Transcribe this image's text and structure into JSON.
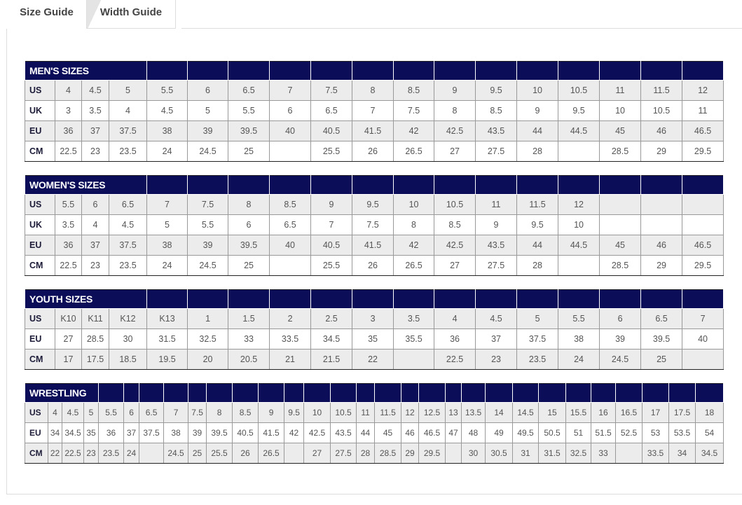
{
  "tabs": [
    {
      "label": "Size Guide",
      "active": true
    },
    {
      "label": "Width Guide",
      "active": false
    }
  ],
  "colors": {
    "header": "#0b0d59",
    "row_alt": "#ececec"
  },
  "tables": {
    "men": {
      "title": "MEN'S SIZES",
      "rows": [
        {
          "label": "US",
          "values": [
            "4",
            "4.5",
            "5",
            "5.5",
            "6",
            "6.5",
            "7",
            "7.5",
            "8",
            "8.5",
            "9",
            "9.5",
            "10",
            "10.5",
            "11",
            "11.5",
            "12"
          ]
        },
        {
          "label": "UK",
          "values": [
            "3",
            "3.5",
            "4",
            "4.5",
            "5",
            "5.5",
            "6",
            "6.5",
            "7",
            "7.5",
            "8",
            "8.5",
            "9",
            "9.5",
            "10",
            "10.5",
            "11"
          ]
        },
        {
          "label": "EU",
          "values": [
            "36",
            "37",
            "37.5",
            "38",
            "39",
            "39.5",
            "40",
            "40.5",
            "41.5",
            "42",
            "42.5",
            "43.5",
            "44",
            "44.5",
            "45",
            "46",
            "46.5"
          ]
        },
        {
          "label": "CM",
          "values": [
            "22.5",
            "23",
            "23.5",
            "24",
            "24.5",
            "25",
            "",
            "25.5",
            "26",
            "26.5",
            "27",
            "27.5",
            "28",
            "",
            "28.5",
            "29",
            "29.5"
          ]
        }
      ]
    },
    "women": {
      "title": "WOMEN'S SIZES",
      "rows": [
        {
          "label": "US",
          "values": [
            "5.5",
            "6",
            "6.5",
            "7",
            "7.5",
            "8",
            "8.5",
            "9",
            "9.5",
            "10",
            "10.5",
            "11",
            "11.5",
            "12",
            "",
            "",
            ""
          ]
        },
        {
          "label": "UK",
          "values": [
            "3.5",
            "4",
            "4.5",
            "5",
            "5.5",
            "6",
            "6.5",
            "7",
            "7.5",
            "8",
            "8.5",
            "9",
            "9.5",
            "10",
            "",
            "",
            ""
          ]
        },
        {
          "label": "EU",
          "values": [
            "36",
            "37",
            "37.5",
            "38",
            "39",
            "39.5",
            "40",
            "40.5",
            "41.5",
            "42",
            "42.5",
            "43.5",
            "44",
            "44.5",
            "45",
            "46",
            "46.5"
          ]
        },
        {
          "label": "CM",
          "values": [
            "22.5",
            "23",
            "23.5",
            "24",
            "24.5",
            "25",
            "",
            "25.5",
            "26",
            "26.5",
            "27",
            "27.5",
            "28",
            "",
            "28.5",
            "29",
            "29.5"
          ]
        }
      ]
    },
    "youth": {
      "title": "YOUTH SIZES",
      "rows": [
        {
          "label": "US",
          "values": [
            "K10",
            "K11",
            "K12",
            "K13",
            "1",
            "1.5",
            "2",
            "2.5",
            "3",
            "3.5",
            "4",
            "4.5",
            "5",
            "5.5",
            "6",
            "6.5",
            "7"
          ]
        },
        {
          "label": "EU",
          "values": [
            "27",
            "28.5",
            "30",
            "31.5",
            "32.5",
            "33",
            "33.5",
            "34.5",
            "35",
            "35.5",
            "36",
            "37",
            "37.5",
            "38",
            "39",
            "39.5",
            "40"
          ]
        },
        {
          "label": "CM",
          "values": [
            "17",
            "17.5",
            "18.5",
            "19.5",
            "20",
            "20.5",
            "21",
            "21.5",
            "22",
            "",
            "22.5",
            "23",
            "23.5",
            "24",
            "24.5",
            "25",
            ""
          ]
        }
      ]
    },
    "wrestling": {
      "title": "WRESTLING",
      "rows": [
        {
          "label": "US",
          "values": [
            "4",
            "4.5",
            "5",
            "5.5",
            "6",
            "6.5",
            "7",
            "7.5",
            "8",
            "8.5",
            "9",
            "9.5",
            "10",
            "10.5",
            "11",
            "11.5",
            "12",
            "12.5",
            "13",
            "13.5",
            "14",
            "14.5",
            "15",
            "15.5",
            "16",
            "16.5",
            "17",
            "17.5",
            "18"
          ]
        },
        {
          "label": "EU",
          "values": [
            "34",
            "34.5",
            "35",
            "36",
            "37",
            "37.5",
            "38",
            "39",
            "39.5",
            "40.5",
            "41.5",
            "42",
            "42.5",
            "43.5",
            "44",
            "45",
            "46",
            "46.5",
            "47",
            "48",
            "49",
            "49.5",
            "50.5",
            "51",
            "51.5",
            "52.5",
            "53",
            "53.5",
            "54"
          ]
        },
        {
          "label": "CM",
          "values": [
            "22",
            "22.5",
            "23",
            "23.5",
            "24",
            "",
            "24.5",
            "25",
            "25.5",
            "26",
            "26.5",
            "",
            "27",
            "27.5",
            "28",
            "28.5",
            "29",
            "29.5",
            "",
            "30",
            "30.5",
            "31",
            "31.5",
            "32.5",
            "33",
            "",
            "33.5",
            "34",
            "34.5"
          ]
        }
      ]
    }
  }
}
